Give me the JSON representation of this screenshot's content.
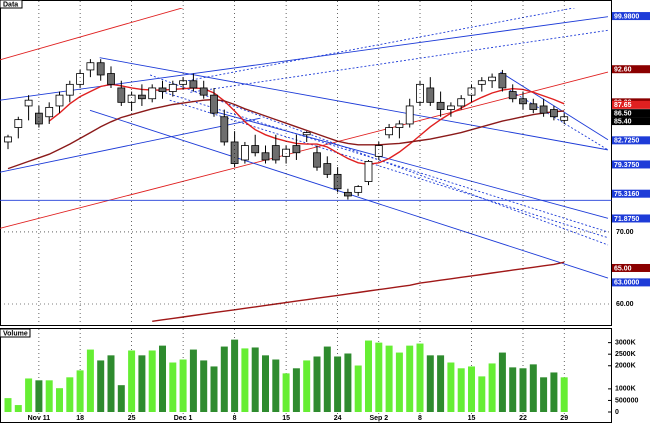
{
  "chart_data": [
    {
      "type": "candlestick",
      "title": "Data",
      "ylim": [
        57.5,
        101.1
      ],
      "yticks": [
        {
          "value": 60,
          "label": "60.00"
        },
        {
          "value": 70,
          "label": "70.00"
        }
      ],
      "grid": true,
      "up_color": "#ffffff",
      "down_color": "#6e6e6e",
      "open": [
        82.5,
        84.5,
        87.5,
        86.5,
        86,
        87.5,
        89,
        90.5,
        92.5,
        93.5,
        92,
        90,
        88,
        89,
        88.5,
        90,
        89.5,
        90.5,
        91,
        90,
        89,
        86,
        82.5,
        80,
        82,
        81,
        82,
        80.5,
        82,
        83.5,
        81,
        79.5,
        78,
        75.5,
        75.5,
        77,
        80.5,
        83.5,
        84.5,
        85,
        88,
        90,
        88,
        87,
        87.5,
        89,
        90.5,
        91,
        92,
        89.5,
        88.5,
        87.8,
        87.5,
        87,
        85.5
      ],
      "high": [
        83.5,
        86,
        89,
        87.5,
        88,
        89.5,
        91,
        92.5,
        94,
        94,
        93,
        91,
        89.5,
        90.5,
        90.5,
        91,
        91,
        91.5,
        92,
        91,
        90,
        87,
        84,
        82.5,
        83.5,
        82,
        83.5,
        82,
        83.5,
        84,
        82,
        80.5,
        79,
        76,
        76.5,
        80,
        82.5,
        85,
        85.5,
        88.5,
        91,
        91.5,
        89.5,
        88,
        89,
        90.5,
        91.5,
        92,
        92.5,
        90.5,
        89.5,
        88.5,
        88.5,
        87.5,
        86.5
      ],
      "low": [
        81.5,
        83,
        85.5,
        84.5,
        85,
        86.5,
        88,
        90,
        91.5,
        91,
        90,
        87.5,
        86.8,
        87.5,
        88,
        88.5,
        88.8,
        89.8,
        89.5,
        88.5,
        86,
        82,
        79,
        79.5,
        80.5,
        79.5,
        79.5,
        79.5,
        80,
        82.5,
        78.5,
        77.5,
        75.5,
        74.5,
        75,
        76.5,
        80,
        83,
        83,
        84.5,
        87.5,
        87.5,
        86,
        86,
        87,
        88,
        89.5,
        90,
        89.5,
        88,
        87,
        86.5,
        86,
        85.5,
        85
      ],
      "close": [
        83.2,
        85.6,
        88.3,
        85,
        87.3,
        89,
        90.5,
        92,
        93.5,
        91.8,
        90.5,
        88,
        89,
        88.5,
        90,
        89.5,
        90.5,
        91,
        90,
        89,
        86.5,
        82.5,
        79.5,
        82,
        81,
        80,
        80,
        81.5,
        81,
        83.8,
        79,
        78,
        76,
        75,
        76.3,
        79.8,
        82,
        84.5,
        85,
        87.5,
        90.5,
        88,
        87,
        87.5,
        88.5,
        90,
        91,
        91.5,
        90,
        88.5,
        87.8,
        87,
        86.5,
        86,
        86
      ],
      "moving_averages": [
        {
          "color": "#e02020",
          "values": [
            null,
            null,
            null,
            null,
            85.4,
            86.5,
            87.8,
            88.8,
            89.5,
            90.2,
            90.5,
            90.3,
            90,
            89.8,
            89.7,
            89.7,
            89.8,
            89.9,
            90,
            89.9,
            89.3,
            88.2,
            86.8,
            85.3,
            84.2,
            83.5,
            83,
            82.6,
            82.3,
            82.2,
            82.2,
            81.8,
            81,
            80.2,
            79.6,
            79.4,
            79.6,
            80.2,
            81.1,
            82.2,
            83.4,
            84.6,
            85.6,
            86.5,
            87.2,
            88,
            88.7,
            89.3,
            89.7,
            89.9,
            89.8,
            89.4,
            88.9,
            88.4,
            87.8
          ]
        },
        {
          "color": "#8b1a1a",
          "values": [
            78.8,
            79.3,
            79.8,
            80.3,
            80.8,
            81.5,
            82.2,
            83,
            83.8,
            84.6,
            85.3,
            85.9,
            86.3,
            86.7,
            87.1,
            87.4,
            87.7,
            87.9,
            88.1,
            88.3,
            88.4,
            88.2,
            87.7,
            87.1,
            86.6,
            86.1,
            85.6,
            85.1,
            84.6,
            84.1,
            83.6,
            83.1,
            82.6,
            82.3,
            82.1,
            82.1,
            82.1,
            82.2,
            82.3,
            82.5,
            82.7,
            82.9,
            83.2,
            83.5,
            83.8,
            84.2,
            84.6,
            85,
            85.4,
            85.7,
            86,
            86.3,
            86.5,
            86.7,
            86.8
          ]
        },
        {
          "color": "#a01818",
          "values": [
            null,
            null,
            null,
            null,
            null,
            null,
            null,
            null,
            null,
            null,
            null,
            null,
            null,
            null,
            57.6,
            57.8,
            58.0,
            58.2,
            58.4,
            58.6,
            58.8,
            59.0,
            59.2,
            59.4,
            59.6,
            59.8,
            60.0,
            60.2,
            60.4,
            60.6,
            60.8,
            61.0,
            61.2,
            61.4,
            61.6,
            61.8,
            62.0,
            62.2,
            62.4,
            62.6,
            62.9,
            63.1,
            63.3,
            63.5,
            63.7,
            63.9,
            64.1,
            64.3,
            64.5,
            64.7,
            64.9,
            65.1,
            65.3,
            65.5,
            65.8
          ]
        }
      ],
      "trendlines": [
        {
          "color": "#e02020",
          "dash": "none",
          "x": [
            -0.78,
            19.6
          ],
          "y": [
            93.9,
            102.2
          ]
        },
        {
          "color": "#1e3cd8",
          "dash": "none",
          "x": [
            -0.78,
            58.25
          ],
          "y": [
            88.3,
            99.9
          ]
        },
        {
          "color": "#e02020",
          "dash": "none",
          "x": [
            -0.78,
            58.25
          ],
          "y": [
            70.5,
            92.2
          ]
        },
        {
          "color": "#1e3cd8",
          "dash": "none",
          "x": [
            -0.78,
            24.5
          ],
          "y": [
            78.3,
            85.8
          ]
        },
        {
          "color": "#1e3cd8",
          "dash": "none",
          "x": [
            8.9,
            58.25
          ],
          "y": [
            94.2,
            81.4
          ]
        },
        {
          "color": "#1e3cd8",
          "dash": "none",
          "x": [
            7.96,
            58.25
          ],
          "y": [
            86.9,
            63.6
          ]
        },
        {
          "color": "#1e3cd8",
          "dash": "none",
          "x": [
            19.6,
            58.25
          ],
          "y": [
            86.9,
            71.9
          ]
        },
        {
          "color": "#1e3cd8",
          "dash": "2,2",
          "x": [
            13.8,
            58.25
          ],
          "y": [
            91.8,
            68.2
          ]
        },
        {
          "color": "#1e3cd8",
          "dash": "2,2",
          "x": [
            13.8,
            58.25
          ],
          "y": [
            90.0,
            70.0
          ]
        },
        {
          "color": "#1e3cd8",
          "dash": "2,2",
          "x": [
            15.7,
            58.25
          ],
          "y": [
            88.3,
            69.2
          ]
        },
        {
          "color": "#1e3cd8",
          "dash": "2,2",
          "x": [
            16.7,
            58.25
          ],
          "y": [
            90.8,
            102
          ]
        },
        {
          "color": "#1e3cd8",
          "dash": "2,2",
          "x": [
            17.7,
            58.25
          ],
          "y": [
            89.4,
            98.0
          ]
        },
        {
          "color": "#1e3cd8",
          "dash": "none",
          "x": [
            -0.78,
            58.6
          ],
          "y": [
            74.4,
            74.4
          ]
        },
        {
          "color": "#1e3cd8",
          "dash": "none",
          "x": [
            47.8,
            58.25
          ],
          "y": [
            92.2,
            82.8
          ]
        },
        {
          "color": "#1e3cd8",
          "dash": "2,2",
          "x": [
            48.7,
            58.25
          ],
          "y": [
            89.7,
            81.4
          ]
        }
      ],
      "price_markers": [
        {
          "value": 99.98,
          "label": "99.9800",
          "color": "#1e3cd8"
        },
        {
          "value": 92.6,
          "label": "92.60",
          "color": "#8b0000"
        },
        {
          "value": 88,
          "label": "88.00",
          "color": "#8b0000"
        },
        {
          "value": 87.65,
          "label": "87.65",
          "color": "#e02020"
        },
        {
          "value": 86.5,
          "label": "86.50",
          "color": "#000000"
        },
        {
          "value": 85.4,
          "label": "85.40",
          "color": "#000000"
        },
        {
          "value": 82.725,
          "label": "82.7250",
          "color": "#1e3cd8"
        },
        {
          "value": 79.375,
          "label": "79.3750",
          "color": "#1e3cd8"
        },
        {
          "value": 75.316,
          "label": "75.3160",
          "color": "#1e3cd8"
        },
        {
          "value": 71.875,
          "label": "71.8750",
          "color": "#1e3cd8"
        },
        {
          "value": 65,
          "label": "65.00",
          "color": "#8b0000"
        },
        {
          "value": 63,
          "label": "63.0000",
          "color": "#1e3cd8"
        }
      ]
    },
    {
      "type": "bar",
      "title": "Volume",
      "categories": [
        null,
        null,
        null,
        "Nov 11",
        null,
        null,
        null,
        "18",
        null,
        null,
        null,
        null,
        "25",
        null,
        null,
        null,
        null,
        "Dec 1",
        null,
        null,
        null,
        null,
        "8",
        null,
        null,
        null,
        null,
        "15",
        null,
        null,
        null,
        null,
        "24",
        null,
        null,
        null,
        "Sep 2",
        null,
        null,
        null,
        "8",
        null,
        null,
        null,
        null,
        "15",
        null,
        null,
        null,
        null,
        "22",
        null,
        null,
        null,
        "29"
      ],
      "values": [
        600,
        300,
        1450,
        1370,
        1370,
        1030,
        1500,
        1800,
        2700,
        2230,
        2450,
        1160,
        2660,
        2450,
        2660,
        2870,
        2140,
        2270,
        2700,
        2230,
        1970,
        2830,
        3130,
        2750,
        2790,
        2450,
        2270,
        1670,
        1890,
        2230,
        2400,
        2830,
        2400,
        2530,
        2010,
        3090,
        3000,
        2870,
        2570,
        2870,
        2960,
        2450,
        2450,
        2140,
        1890,
        1970,
        1540,
        2100,
        2570,
        1930,
        1890,
        2060,
        1500,
        1710,
        1500
      ],
      "up_color": "#66ee33",
      "down_color": "#2e8b2e",
      "ylim": [
        0,
        3200
      ],
      "yticks": [
        0,
        {
          "value": 500,
          "label": "500000"
        },
        {
          "value": 1000,
          "label": "1000K"
        },
        {
          "value": 2000,
          "label": "2000K"
        },
        {
          "value": 2500,
          "label": "2500K"
        },
        {
          "value": 3000,
          "label": "3000K"
        }
      ]
    }
  ]
}
